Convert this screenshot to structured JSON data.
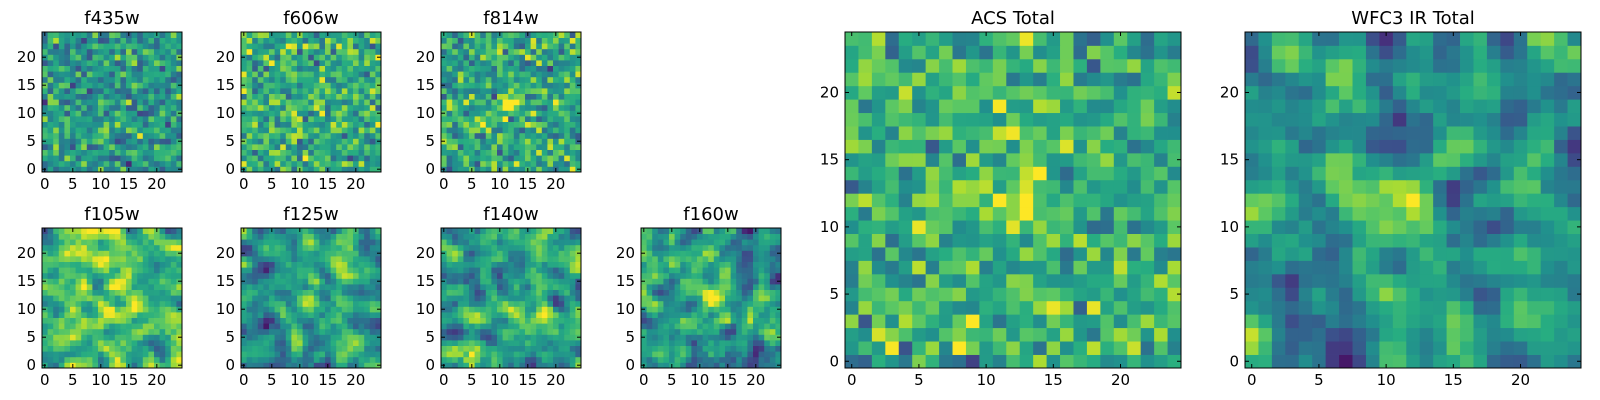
{
  "chart_data": [
    {
      "type": "heatmap",
      "title": "f435w",
      "grid": 25,
      "range": [
        0,
        24
      ],
      "xticks": [
        0,
        5,
        10,
        15,
        20
      ],
      "yticks": [
        0,
        5,
        10,
        15,
        20
      ],
      "colormap": "viridis",
      "seed": 11,
      "bias": 0.0,
      "blur": 0,
      "peak": null
    },
    {
      "type": "heatmap",
      "title": "f606w",
      "grid": 25,
      "range": [
        0,
        24
      ],
      "xticks": [
        0,
        5,
        10,
        15,
        20
      ],
      "yticks": [
        0,
        5,
        10,
        15,
        20
      ],
      "colormap": "viridis",
      "seed": 23,
      "bias": 0.1,
      "blur": 0,
      "peak": null
    },
    {
      "type": "heatmap",
      "title": "f814w",
      "grid": 25,
      "range": [
        0,
        24
      ],
      "xticks": [
        0,
        5,
        10,
        15,
        20
      ],
      "yticks": [
        0,
        5,
        10,
        15,
        20
      ],
      "colormap": "viridis",
      "seed": 37,
      "bias": 0.05,
      "blur": 0,
      "peak": [
        12,
        12,
        0.4
      ]
    },
    {
      "type": "heatmap",
      "title": "f105w",
      "grid": 25,
      "range": [
        0,
        24
      ],
      "xticks": [
        0,
        5,
        10,
        15,
        20
      ],
      "yticks": [
        0,
        5,
        10,
        15,
        20
      ],
      "colormap": "viridis",
      "seed": 41,
      "bias": 0.1,
      "blur": 1,
      "peak": [
        12,
        11,
        0.3
      ]
    },
    {
      "type": "heatmap",
      "title": "f125w",
      "grid": 25,
      "range": [
        0,
        24
      ],
      "xticks": [
        0,
        5,
        10,
        15,
        20
      ],
      "yticks": [
        0,
        5,
        10,
        15,
        20
      ],
      "colormap": "viridis",
      "seed": 53,
      "bias": -0.05,
      "blur": 1,
      "peak": [
        12,
        12,
        0.6
      ]
    },
    {
      "type": "heatmap",
      "title": "f140w",
      "grid": 25,
      "range": [
        0,
        24
      ],
      "xticks": [
        0,
        5,
        10,
        15,
        20
      ],
      "yticks": [
        0,
        5,
        10,
        15,
        20
      ],
      "colormap": "viridis",
      "seed": 67,
      "bias": 0.05,
      "blur": 1,
      "peak": [
        12,
        11,
        0.3
      ]
    },
    {
      "type": "heatmap",
      "title": "f160w",
      "grid": 25,
      "range": [
        0,
        24
      ],
      "xticks": [
        0,
        5,
        10,
        15,
        20
      ],
      "yticks": [
        0,
        5,
        10,
        15,
        20
      ],
      "colormap": "viridis",
      "seed": 79,
      "bias": -0.05,
      "blur": 1,
      "peak": [
        12,
        12,
        0.6
      ]
    },
    {
      "type": "heatmap",
      "title": "ACS Total",
      "grid": 25,
      "range": [
        0,
        24
      ],
      "xticks": [
        0,
        5,
        10,
        15,
        20
      ],
      "yticks": [
        0,
        5,
        10,
        15,
        20
      ],
      "colormap": "viridis",
      "seed": 97,
      "bias": 0.08,
      "blur": 0,
      "peak": [
        12,
        12,
        0.5
      ]
    },
    {
      "type": "heatmap",
      "title": "WFC3 IR Total",
      "grid": 25,
      "range": [
        0,
        24
      ],
      "xticks": [
        0,
        5,
        10,
        15,
        20
      ],
      "yticks": [
        0,
        5,
        10,
        15,
        20
      ],
      "colormap": "viridis",
      "seed": 113,
      "bias": -0.05,
      "blur": 1,
      "peak": [
        12,
        12,
        0.8
      ]
    }
  ]
}
